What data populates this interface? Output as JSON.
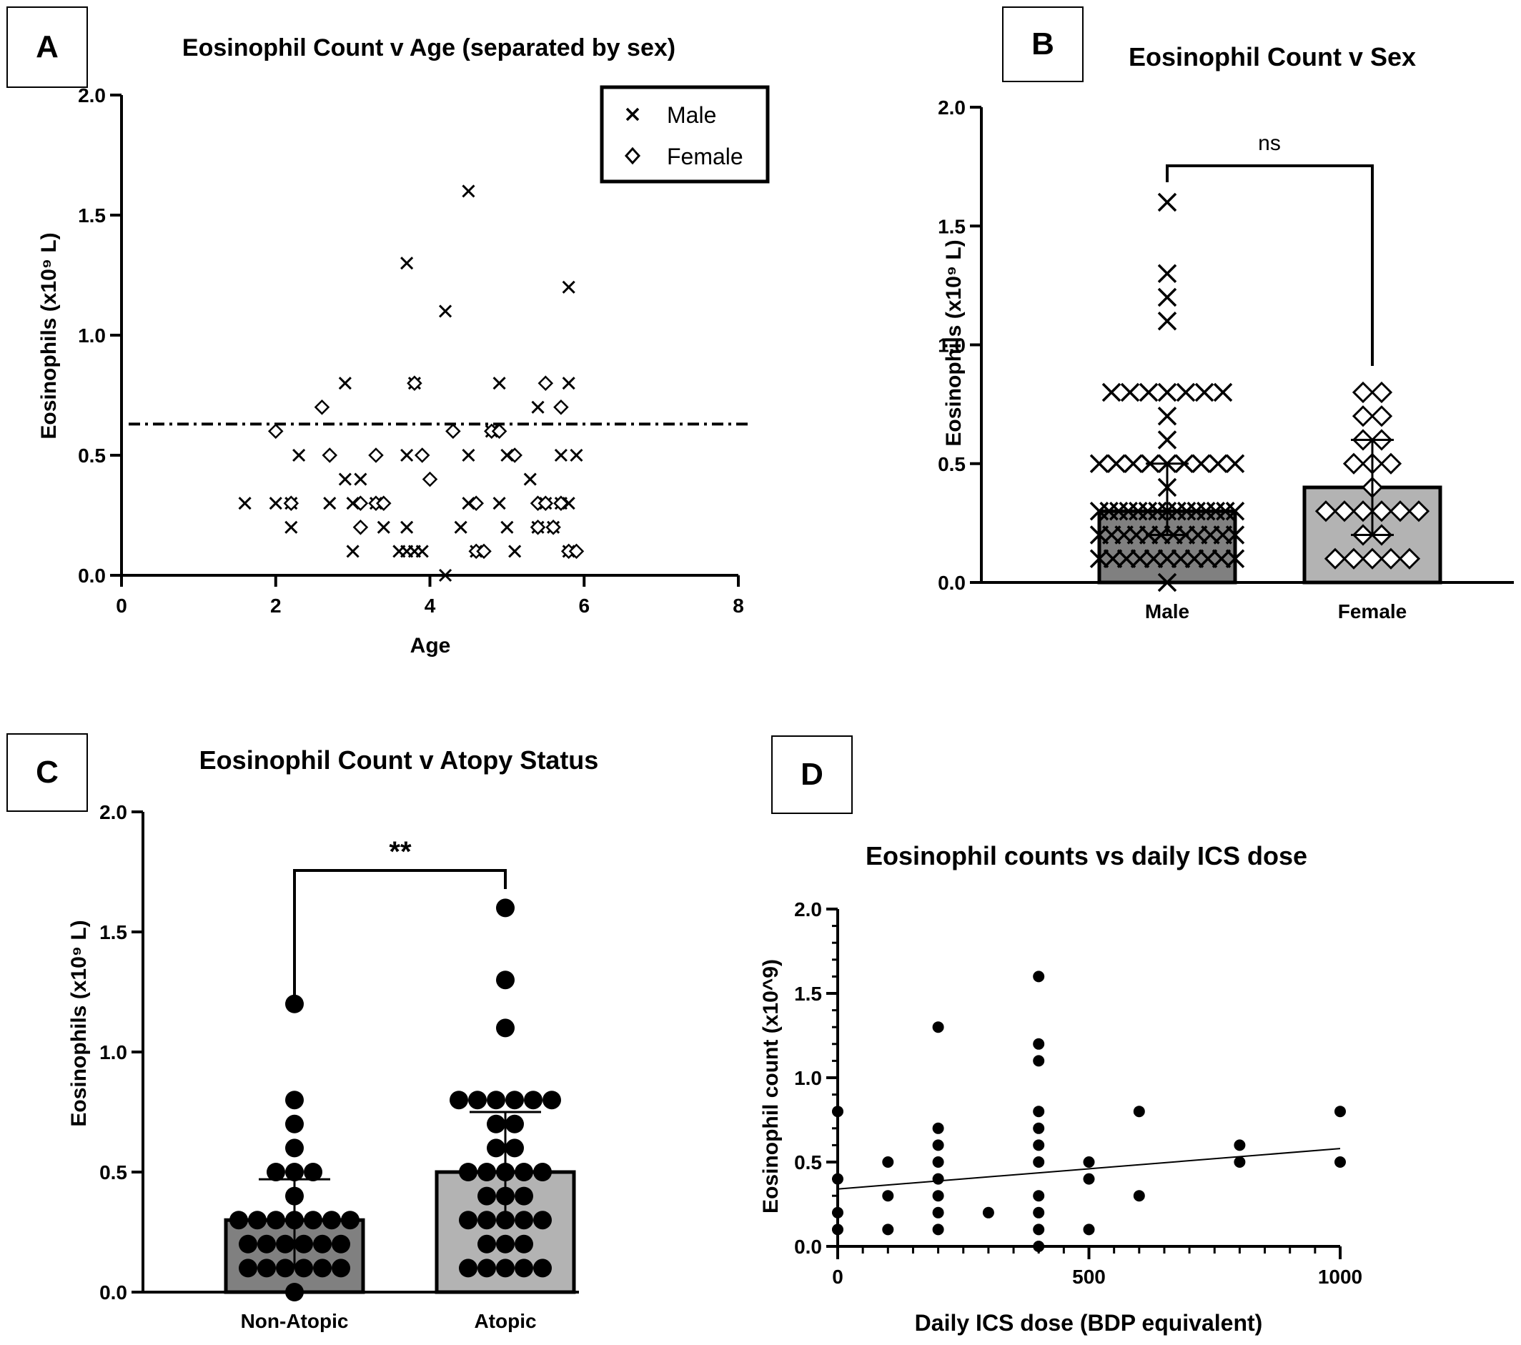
{
  "chart_data": [
    {
      "panel": "A",
      "type": "scatter",
      "title": "Eosinophil Count v Age (separated by sex)",
      "xlabel": "Age",
      "ylabel": "Eosinophils (x10⁹ L)",
      "xlim": [
        0,
        8
      ],
      "ylim": [
        0,
        2.0
      ],
      "xticks": [
        "0",
        "2",
        "4",
        "6",
        "8"
      ],
      "yticks": [
        "0.0",
        "0.5",
        "1.0",
        "1.5",
        "2.0"
      ],
      "legend_position": "top-right",
      "reference_line": {
        "y": 0.63,
        "style": "dash-dot"
      },
      "series": [
        {
          "name": "Male",
          "marker": "x",
          "points": [
            [
              1.6,
              0.3
            ],
            [
              2.0,
              0.3
            ],
            [
              2.2,
              0.3
            ],
            [
              2.2,
              0.2
            ],
            [
              2.3,
              0.5
            ],
            [
              2.7,
              0.3
            ],
            [
              2.9,
              0.8
            ],
            [
              2.9,
              0.4
            ],
            [
              3.0,
              0.3
            ],
            [
              3.0,
              0.1
            ],
            [
              3.1,
              0.4
            ],
            [
              3.3,
              0.3
            ],
            [
              3.4,
              0.2
            ],
            [
              3.6,
              0.1
            ],
            [
              3.7,
              1.3
            ],
            [
              3.7,
              0.5
            ],
            [
              3.7,
              0.2
            ],
            [
              3.7,
              0.1
            ],
            [
              3.8,
              0.1
            ],
            [
              3.8,
              0.8
            ],
            [
              3.9,
              0.1
            ],
            [
              4.2,
              1.1
            ],
            [
              4.2,
              0.0
            ],
            [
              4.4,
              0.2
            ],
            [
              4.5,
              1.6
            ],
            [
              4.5,
              0.5
            ],
            [
              4.5,
              0.3
            ],
            [
              4.6,
              0.1
            ],
            [
              4.8,
              0.6
            ],
            [
              4.9,
              0.8
            ],
            [
              4.9,
              0.3
            ],
            [
              5.0,
              0.2
            ],
            [
              5.0,
              0.5
            ],
            [
              5.1,
              0.1
            ],
            [
              5.3,
              0.4
            ],
            [
              5.4,
              0.7
            ],
            [
              5.4,
              0.2
            ],
            [
              5.5,
              0.3
            ],
            [
              5.6,
              0.2
            ],
            [
              5.7,
              0.5
            ],
            [
              5.7,
              0.3
            ],
            [
              5.8,
              1.2
            ],
            [
              5.8,
              0.8
            ],
            [
              5.8,
              0.3
            ],
            [
              5.8,
              0.1
            ],
            [
              5.9,
              0.5
            ]
          ]
        },
        {
          "name": "Female",
          "marker": "diamond",
          "points": [
            [
              2.0,
              0.6
            ],
            [
              2.2,
              0.3
            ],
            [
              2.6,
              0.7
            ],
            [
              2.7,
              0.5
            ],
            [
              3.1,
              0.3
            ],
            [
              3.1,
              0.2
            ],
            [
              3.3,
              0.5
            ],
            [
              3.3,
              0.3
            ],
            [
              3.4,
              0.3
            ],
            [
              3.8,
              0.8
            ],
            [
              3.9,
              0.5
            ],
            [
              4.0,
              0.4
            ],
            [
              4.3,
              0.6
            ],
            [
              4.6,
              0.3
            ],
            [
              4.6,
              0.1
            ],
            [
              4.7,
              0.1
            ],
            [
              4.8,
              0.6
            ],
            [
              4.9,
              0.6
            ],
            [
              5.1,
              0.5
            ],
            [
              5.4,
              0.3
            ],
            [
              5.4,
              0.2
            ],
            [
              5.5,
              0.8
            ],
            [
              5.5,
              0.3
            ],
            [
              5.6,
              0.2
            ],
            [
              5.7,
              0.7
            ],
            [
              5.7,
              0.3
            ],
            [
              5.8,
              0.1
            ],
            [
              5.9,
              0.1
            ]
          ]
        }
      ]
    },
    {
      "panel": "B",
      "type": "bar",
      "title": "Eosinophil Count v Sex",
      "ylabel": "Eosinophils (x10⁹ L)",
      "ylim": [
        0,
        2.0
      ],
      "yticks": [
        "0.0",
        "0.5",
        "1.0",
        "1.5",
        "2.0"
      ],
      "categories": [
        "Male",
        "Female"
      ],
      "values": [
        0.3,
        0.4
      ],
      "error_low": [
        0.2,
        0.2
      ],
      "error_high": [
        0.5,
        0.6
      ],
      "bar_colors": [
        "#808080",
        "#b3b3b3"
      ],
      "significance": "ns",
      "marker": "x / diamond",
      "points": [
        [
          0,
          0.0
        ],
        [
          0,
          0.1
        ],
        [
          0,
          0.1
        ],
        [
          0,
          0.1
        ],
        [
          0,
          0.1
        ],
        [
          0,
          0.1
        ],
        [
          0,
          0.1
        ],
        [
          0,
          0.1
        ],
        [
          0,
          0.1
        ],
        [
          0,
          0.1
        ],
        [
          0,
          0.1
        ],
        [
          0,
          0.1
        ],
        [
          0,
          0.2
        ],
        [
          0,
          0.2
        ],
        [
          0,
          0.2
        ],
        [
          0,
          0.2
        ],
        [
          0,
          0.2
        ],
        [
          0,
          0.2
        ],
        [
          0,
          0.2
        ],
        [
          0,
          0.2
        ],
        [
          0,
          0.2
        ],
        [
          0,
          0.2
        ],
        [
          0,
          0.2
        ],
        [
          0,
          0.2
        ],
        [
          0,
          0.3
        ],
        [
          0,
          0.3
        ],
        [
          0,
          0.3
        ],
        [
          0,
          0.3
        ],
        [
          0,
          0.3
        ],
        [
          0,
          0.3
        ],
        [
          0,
          0.3
        ],
        [
          0,
          0.3
        ],
        [
          0,
          0.3
        ],
        [
          0,
          0.3
        ],
        [
          0,
          0.3
        ],
        [
          0,
          0.3
        ],
        [
          0,
          0.3
        ],
        [
          0,
          0.3
        ],
        [
          0,
          0.3
        ],
        [
          0,
          0.4
        ],
        [
          0,
          0.5
        ],
        [
          0,
          0.5
        ],
        [
          0,
          0.5
        ],
        [
          0,
          0.5
        ],
        [
          0,
          0.5
        ],
        [
          0,
          0.5
        ],
        [
          0,
          0.5
        ],
        [
          0,
          0.5
        ],
        [
          0,
          0.5
        ],
        [
          0,
          0.6
        ],
        [
          0,
          0.7
        ],
        [
          0,
          0.8
        ],
        [
          0,
          0.8
        ],
        [
          0,
          0.8
        ],
        [
          0,
          0.8
        ],
        [
          0,
          0.8
        ],
        [
          0,
          0.8
        ],
        [
          0,
          0.8
        ],
        [
          0,
          1.1
        ],
        [
          0,
          1.2
        ],
        [
          0,
          1.3
        ],
        [
          0,
          1.6
        ],
        [
          1,
          0.1
        ],
        [
          1,
          0.1
        ],
        [
          1,
          0.1
        ],
        [
          1,
          0.1
        ],
        [
          1,
          0.1
        ],
        [
          1,
          0.2
        ],
        [
          1,
          0.2
        ],
        [
          1,
          0.3
        ],
        [
          1,
          0.3
        ],
        [
          1,
          0.3
        ],
        [
          1,
          0.3
        ],
        [
          1,
          0.3
        ],
        [
          1,
          0.3
        ],
        [
          1,
          0.4
        ],
        [
          1,
          0.5
        ],
        [
          1,
          0.5
        ],
        [
          1,
          0.5
        ],
        [
          1,
          0.6
        ],
        [
          1,
          0.6
        ],
        [
          1,
          0.7
        ],
        [
          1,
          0.7
        ],
        [
          1,
          0.8
        ],
        [
          1,
          0.8
        ]
      ]
    },
    {
      "panel": "C",
      "type": "bar",
      "title": "Eosinophil Count v Atopy Status",
      "ylabel": "Eosinophils (x10⁹ L)",
      "ylim": [
        0,
        2.0
      ],
      "yticks": [
        "0.0",
        "0.5",
        "1.0",
        "1.5",
        "2.0"
      ],
      "categories": [
        "Non-Atopic",
        "Atopic"
      ],
      "values": [
        0.3,
        0.5
      ],
      "error_low": [
        0.1,
        0.27
      ],
      "error_high": [
        0.47,
        0.75
      ],
      "bar_colors": [
        "#808080",
        "#b3b3b3"
      ],
      "significance": "**",
      "marker": "circle",
      "points": [
        [
          0,
          0.0
        ],
        [
          0,
          0.1
        ],
        [
          0,
          0.1
        ],
        [
          0,
          0.1
        ],
        [
          0,
          0.1
        ],
        [
          0,
          0.1
        ],
        [
          0,
          0.1
        ],
        [
          0,
          0.2
        ],
        [
          0,
          0.2
        ],
        [
          0,
          0.2
        ],
        [
          0,
          0.2
        ],
        [
          0,
          0.2
        ],
        [
          0,
          0.2
        ],
        [
          0,
          0.3
        ],
        [
          0,
          0.3
        ],
        [
          0,
          0.3
        ],
        [
          0,
          0.3
        ],
        [
          0,
          0.3
        ],
        [
          0,
          0.3
        ],
        [
          0,
          0.3
        ],
        [
          0,
          0.4
        ],
        [
          0,
          0.5
        ],
        [
          0,
          0.5
        ],
        [
          0,
          0.5
        ],
        [
          0,
          0.6
        ],
        [
          0,
          0.7
        ],
        [
          0,
          0.8
        ],
        [
          0,
          1.2
        ],
        [
          1,
          0.1
        ],
        [
          1,
          0.1
        ],
        [
          1,
          0.1
        ],
        [
          1,
          0.1
        ],
        [
          1,
          0.1
        ],
        [
          1,
          0.2
        ],
        [
          1,
          0.2
        ],
        [
          1,
          0.2
        ],
        [
          1,
          0.3
        ],
        [
          1,
          0.3
        ],
        [
          1,
          0.3
        ],
        [
          1,
          0.3
        ],
        [
          1,
          0.3
        ],
        [
          1,
          0.4
        ],
        [
          1,
          0.4
        ],
        [
          1,
          0.4
        ],
        [
          1,
          0.5
        ],
        [
          1,
          0.5
        ],
        [
          1,
          0.5
        ],
        [
          1,
          0.5
        ],
        [
          1,
          0.5
        ],
        [
          1,
          0.6
        ],
        [
          1,
          0.6
        ],
        [
          1,
          0.7
        ],
        [
          1,
          0.7
        ],
        [
          1,
          0.8
        ],
        [
          1,
          0.8
        ],
        [
          1,
          0.8
        ],
        [
          1,
          0.8
        ],
        [
          1,
          0.8
        ],
        [
          1,
          0.8
        ],
        [
          1,
          1.1
        ],
        [
          1,
          1.3
        ],
        [
          1,
          1.6
        ]
      ]
    },
    {
      "panel": "D",
      "type": "scatter",
      "title": "Eosinophil counts vs daily ICS dose",
      "xlabel": "Daily ICS dose (BDP equivalent)",
      "ylabel": "Eosinophil count (x10^9)",
      "xlim": [
        0,
        1000
      ],
      "ylim": [
        0,
        2.0
      ],
      "xticks": [
        "0",
        "500",
        "1000"
      ],
      "yticks": [
        "0.0",
        "0.5",
        "1.0",
        "1.5",
        "2.0"
      ],
      "trendline": {
        "x": [
          0,
          1000
        ],
        "y": [
          0.34,
          0.58
        ]
      },
      "points": [
        [
          0,
          0.8
        ],
        [
          0,
          0.4
        ],
        [
          0,
          0.2
        ],
        [
          0,
          0.1
        ],
        [
          100,
          0.5
        ],
        [
          100,
          0.3
        ],
        [
          100,
          0.1
        ],
        [
          200,
          1.3
        ],
        [
          200,
          0.7
        ],
        [
          200,
          0.6
        ],
        [
          200,
          0.5
        ],
        [
          200,
          0.4
        ],
        [
          200,
          0.3
        ],
        [
          200,
          0.2
        ],
        [
          200,
          0.1
        ],
        [
          300,
          0.2
        ],
        [
          400,
          1.6
        ],
        [
          400,
          1.2
        ],
        [
          400,
          1.1
        ],
        [
          400,
          0.8
        ],
        [
          400,
          0.7
        ],
        [
          400,
          0.6
        ],
        [
          400,
          0.5
        ],
        [
          400,
          0.3
        ],
        [
          400,
          0.2
        ],
        [
          400,
          0.1
        ],
        [
          400,
          0.0
        ],
        [
          500,
          0.5
        ],
        [
          500,
          0.4
        ],
        [
          500,
          0.1
        ],
        [
          600,
          0.8
        ],
        [
          600,
          0.3
        ],
        [
          800,
          0.6
        ],
        [
          800,
          0.5
        ],
        [
          1000,
          0.8
        ],
        [
          1000,
          0.5
        ]
      ]
    }
  ],
  "panel_labels": {
    "a": "A",
    "b": "B",
    "c": "C",
    "d": "D"
  },
  "legend": {
    "male": "Male",
    "female": "Female"
  },
  "colors": {
    "ink": "#000000",
    "bar_dark": "#808080",
    "bar_light": "#b3b3b3",
    "background": "#ffffff"
  }
}
